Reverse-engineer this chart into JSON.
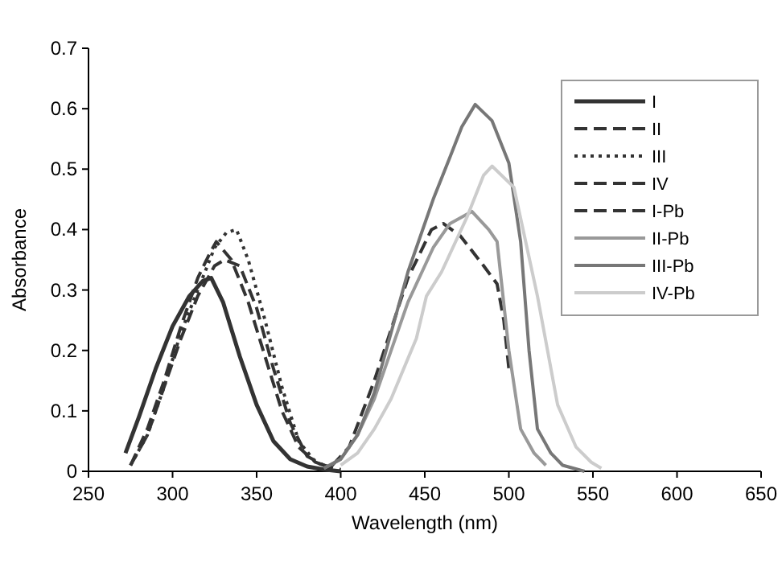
{
  "chart_data": {
    "type": "line",
    "xlabel": "Wavelength (nm)",
    "ylabel": "Absorbance",
    "xlim": [
      250,
      650
    ],
    "xticks": [
      250,
      300,
      350,
      400,
      450,
      500,
      550,
      600,
      650
    ],
    "ylim": [
      0,
      0.7
    ],
    "yticks": [
      0,
      0.1,
      0.2,
      0.3,
      0.4,
      0.5,
      0.6,
      0.7
    ],
    "grid": false,
    "legend": "top right",
    "marker": "none",
    "series": [
      {
        "name": "I",
        "color": "#333333",
        "line_style": "solid",
        "x": [
          272,
          280,
          290,
          300,
          310,
          318,
          323,
          330,
          340,
          350,
          360,
          370,
          380,
          390,
          400
        ],
        "values": [
          0.03,
          0.09,
          0.17,
          0.24,
          0.29,
          0.315,
          0.32,
          0.28,
          0.19,
          0.11,
          0.05,
          0.02,
          0.008,
          0.003,
          0
        ]
      },
      {
        "name": "II",
        "color": "#333333",
        "line_style": "dashed",
        "x": [
          275,
          285,
          295,
          305,
          315,
          322,
          326,
          335,
          345,
          355,
          365,
          375,
          385,
          395
        ],
        "values": [
          0.01,
          0.07,
          0.15,
          0.24,
          0.32,
          0.36,
          0.38,
          0.35,
          0.28,
          0.19,
          0.1,
          0.04,
          0.015,
          0.005
        ]
      },
      {
        "name": "III",
        "color": "#333333",
        "line_style": "dotted",
        "x": [
          275,
          285,
          295,
          305,
          315,
          325,
          332,
          338,
          345,
          355,
          365,
          375,
          385,
          395
        ],
        "values": [
          0.01,
          0.06,
          0.14,
          0.23,
          0.3,
          0.37,
          0.395,
          0.4,
          0.35,
          0.25,
          0.14,
          0.05,
          0.015,
          0.005
        ]
      },
      {
        "name": "IV",
        "color": "#333333",
        "line_style": "dashed",
        "x": [
          275,
          285,
          295,
          305,
          315,
          325,
          331,
          340,
          350,
          360,
          370,
          380,
          390,
          400
        ],
        "values": [
          0.01,
          0.06,
          0.14,
          0.22,
          0.29,
          0.34,
          0.35,
          0.34,
          0.27,
          0.17,
          0.08,
          0.025,
          0.01,
          0.003
        ]
      },
      {
        "name": "I-Pb",
        "color": "#333333",
        "line_style": "dashed",
        "x": [
          395,
          405,
          420,
          440,
          454,
          461,
          471,
          485,
          493,
          497,
          500
        ],
        "values": [
          0.01,
          0.04,
          0.15,
          0.32,
          0.4,
          0.41,
          0.39,
          0.34,
          0.31,
          0.25,
          0.17
        ]
      },
      {
        "name": "II-Pb",
        "color": "#999999",
        "line_style": "solid",
        "x": [
          390,
          400,
          410,
          420,
          430,
          440,
          455,
          465,
          478,
          488,
          493,
          500,
          507,
          515,
          522
        ],
        "values": [
          0.005,
          0.02,
          0.06,
          0.12,
          0.2,
          0.28,
          0.37,
          0.41,
          0.43,
          0.4,
          0.38,
          0.2,
          0.07,
          0.03,
          0.01
        ]
      },
      {
        "name": "III-Pb",
        "color": "#777777",
        "line_style": "solid",
        "x": [
          390,
          400,
          410,
          420,
          430,
          440,
          455,
          465,
          472,
          480,
          490,
          500,
          507,
          512,
          517,
          525,
          532,
          545
        ],
        "values": [
          0.005,
          0.02,
          0.06,
          0.13,
          0.23,
          0.33,
          0.45,
          0.52,
          0.57,
          0.607,
          0.58,
          0.51,
          0.38,
          0.2,
          0.07,
          0.03,
          0.01,
          0
        ]
      },
      {
        "name": "IV-Pb",
        "color": "#cccccc",
        "line_style": "solid",
        "x": [
          400,
          410,
          420,
          430,
          445,
          451,
          460,
          475,
          485,
          490,
          503,
          510,
          517,
          523,
          529,
          540,
          549,
          555
        ],
        "values": [
          0.01,
          0.03,
          0.07,
          0.12,
          0.22,
          0.29,
          0.33,
          0.42,
          0.49,
          0.505,
          0.47,
          0.38,
          0.29,
          0.2,
          0.11,
          0.04,
          0.015,
          0.005
        ]
      }
    ]
  }
}
